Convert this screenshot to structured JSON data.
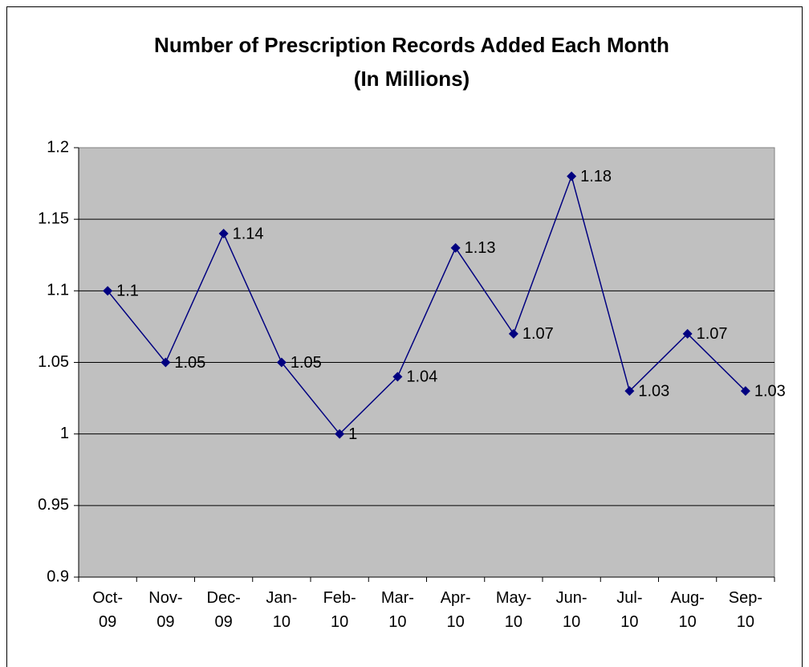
{
  "chart_data": {
    "type": "line",
    "title": "Number of Prescription Records Added Each Month",
    "subtitle": "(In Millions)",
    "categories": [
      "Oct-09",
      "Nov-09",
      "Dec-09",
      "Jan-10",
      "Feb-10",
      "Mar-10",
      "Apr-10",
      "May-10",
      "Jun-10",
      "Jul-10",
      "Aug-10",
      "Sep-10"
    ],
    "values": [
      1.1,
      1.05,
      1.14,
      1.05,
      1,
      1.04,
      1.13,
      1.07,
      1.18,
      1.03,
      1.07,
      1.03
    ],
    "color": "#000080",
    "ylim": [
      0.9,
      1.2
    ],
    "yticks": [
      0.9,
      0.95,
      1,
      1.05,
      1.1,
      1.15,
      1.2
    ],
    "grid": true
  }
}
